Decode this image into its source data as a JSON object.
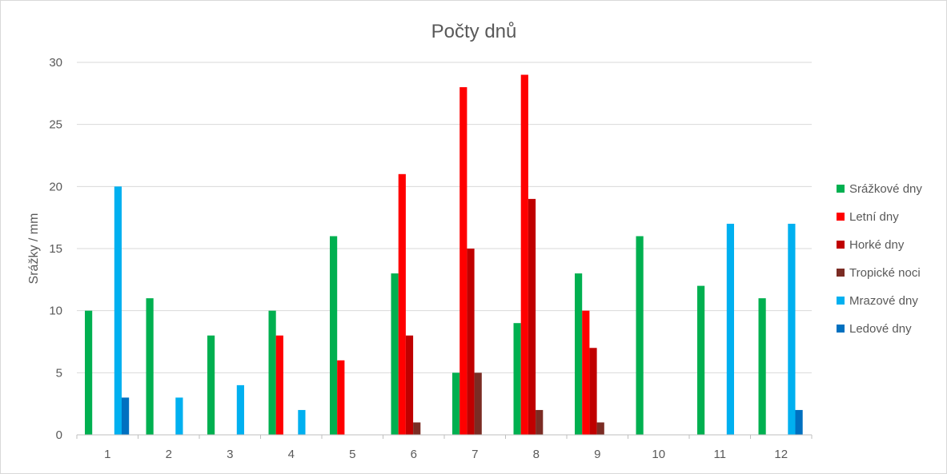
{
  "chart_data": {
    "type": "bar",
    "title": "Počty dnů",
    "xlabel": "",
    "ylabel": "Srážky / mm",
    "ylim": [
      0,
      30
    ],
    "yticks": [
      0,
      5,
      10,
      15,
      20,
      25,
      30
    ],
    "grid": true,
    "legend_position": "right",
    "categories": [
      "1",
      "2",
      "3",
      "4",
      "5",
      "6",
      "7",
      "8",
      "9",
      "10",
      "11",
      "12"
    ],
    "series": [
      {
        "name": "Srážkové dny",
        "color": "#00b050",
        "values": [
          10,
          11,
          8,
          10,
          16,
          13,
          5,
          9,
          13,
          16,
          12,
          11
        ]
      },
      {
        "name": "Letní dny",
        "color": "#ff0000",
        "values": [
          0,
          0,
          0,
          8,
          6,
          21,
          28,
          29,
          10,
          0,
          0,
          0
        ]
      },
      {
        "name": "Horké dny",
        "color": "#c00000",
        "values": [
          0,
          0,
          0,
          0,
          0,
          8,
          15,
          19,
          7,
          0,
          0,
          0
        ]
      },
      {
        "name": "Tropické noci",
        "color": "#7b2c24",
        "values": [
          0,
          0,
          0,
          0,
          0,
          1,
          5,
          2,
          1,
          0,
          0,
          0
        ]
      },
      {
        "name": "Mrazové dny",
        "color": "#00b0f0",
        "values": [
          20,
          3,
          4,
          2,
          0,
          0,
          0,
          0,
          0,
          0,
          17,
          17
        ]
      },
      {
        "name": "Ledové dny",
        "color": "#0070c0",
        "values": [
          3,
          0,
          0,
          0,
          0,
          0,
          0,
          0,
          0,
          0,
          0,
          2
        ]
      }
    ]
  }
}
